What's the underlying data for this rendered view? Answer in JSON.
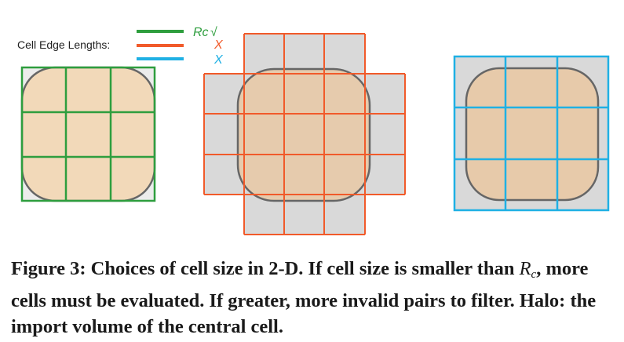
{
  "figure": {
    "legend": {
      "title": "Cell Edge Lengths:",
      "entries": [
        {
          "label": "Rc",
          "status": "√",
          "color": "#2e9e3e",
          "status_color": "#2e9e3e"
        },
        {
          "label": "",
          "status": "X",
          "color": "#f15a2a",
          "status_color": "#f15a2a"
        },
        {
          "label": "",
          "status": "X",
          "color": "#1fb0e4",
          "status_color": "#1fb0e4"
        }
      ]
    },
    "colors": {
      "cell_fill": "#f2d9b9",
      "halo_fill": "#d9d9d9",
      "halo_fill_light": "#ececec",
      "volume_stroke": "#666666",
      "equal_grid": "#2e9e3e",
      "smaller_grid": "#f15a2a",
      "larger_grid": "#1fb0e4"
    }
  },
  "caption": {
    "label": "Figure 3:",
    "text_1": " Choices of cell size in 2-D. If cell size is smaller than ",
    "symbol": "R",
    "symbol_sub": "c",
    "text_2": ", more cells must be evaluated. If greater, more invalid pairs to filter. Halo: the import volume of the central cell."
  }
}
